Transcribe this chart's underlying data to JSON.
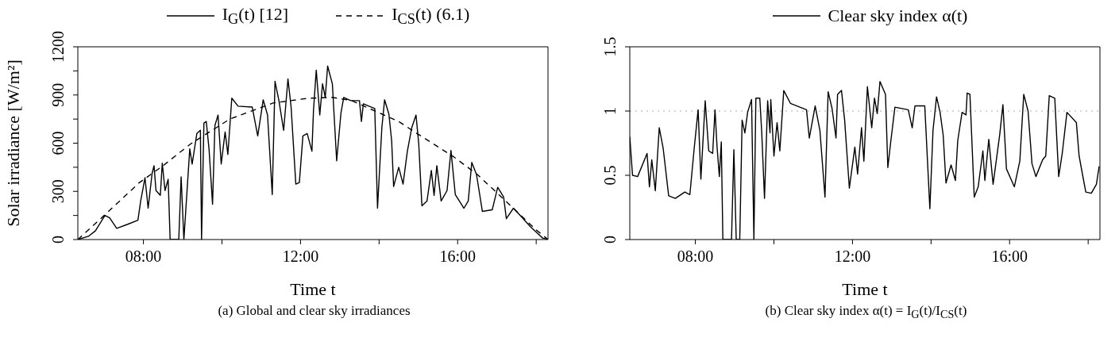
{
  "chart_data": [
    {
      "type": "line",
      "xlabel": "Time t",
      "ylabel": "Solar irradiance [W/m²]",
      "legend": "top",
      "annotations": [
        "(a) Global and clear sky irradiances"
      ],
      "xlim": [
        6.33,
        18.3
      ],
      "xticks": [
        {
          "value": 8,
          "label": "08:00"
        },
        {
          "value": 10,
          "label": null
        },
        {
          "value": 12,
          "label": "12:00"
        },
        {
          "value": 14,
          "label": null
        },
        {
          "value": 16,
          "label": "16:00"
        },
        {
          "value": 18,
          "label": null
        }
      ],
      "ylim": [
        0,
        1200
      ],
      "yticks": [
        0,
        {
          "value": 150,
          "label": null
        },
        300,
        {
          "value": 450,
          "label": null
        },
        600,
        {
          "value": 750,
          "label": null
        },
        900,
        {
          "value": 1050,
          "label": null
        },
        1200
      ],
      "series": [
        {
          "name": "I$_{G}$(t) [12]",
          "color": "#000000",
          "line_style": "solid",
          "x": [
            6.33,
            6.6,
            6.78,
            7.02,
            7.14,
            7.32,
            7.6,
            7.86,
            7.93,
            8.04,
            8.12,
            8.22,
            8.27,
            8.32,
            8.43,
            8.48,
            8.55,
            8.63,
            8.68,
            8.9,
            8.96,
            9.03,
            9.18,
            9.24,
            9.36,
            9.45,
            9.48,
            9.54,
            9.6,
            9.67,
            9.76,
            9.82,
            9.9,
            9.98,
            10.08,
            10.15,
            10.25,
            10.41,
            10.77,
            10.91,
            11.05,
            11.16,
            11.28,
            11.35,
            11.45,
            11.57,
            11.68,
            11.76,
            11.88,
            11.97,
            12.06,
            12.17,
            12.29,
            12.33,
            12.4,
            12.49,
            12.56,
            12.63,
            12.69,
            12.81,
            12.92,
            13.03,
            13.1,
            13.28,
            13.5,
            13.55,
            13.6,
            13.89,
            13.96,
            14.07,
            14.14,
            14.25,
            14.32,
            14.37,
            14.5,
            14.61,
            14.72,
            14.83,
            14.94,
            15.01,
            15.09,
            15.22,
            15.33,
            15.4,
            15.47,
            15.58,
            15.73,
            15.83,
            15.94,
            16.16,
            16.27,
            16.36,
            16.48,
            16.63,
            16.88,
            17.02,
            17.17,
            17.24,
            17.42,
            17.67,
            17.85,
            18.03,
            18.17,
            18.28
          ],
          "values": [
            0,
            20,
            55,
            150,
            135,
            70,
            95,
            120,
            240,
            385,
            195,
            410,
            460,
            305,
            275,
            475,
            305,
            375,
            0,
            0,
            390,
            0,
            565,
            470,
            660,
            680,
            0,
            725,
            735,
            565,
            220,
            710,
            775,
            470,
            670,
            530,
            880,
            830,
            825,
            645,
            870,
            775,
            280,
            985,
            865,
            680,
            1000,
            825,
            345,
            355,
            645,
            660,
            550,
            805,
            1055,
            775,
            970,
            885,
            1080,
            970,
            490,
            790,
            885,
            865,
            865,
            735,
            845,
            815,
            195,
            695,
            870,
            780,
            615,
            330,
            450,
            345,
            550,
            695,
            775,
            595,
            210,
            240,
            430,
            275,
            460,
            240,
            305,
            555,
            280,
            195,
            240,
            480,
            405,
            175,
            185,
            325,
            265,
            130,
            195,
            130,
            80,
            40,
            8,
            3
          ]
        },
        {
          "name": "I$_{CS}$(t) (6.1)",
          "color": "#000000",
          "line_style": "dashed",
          "x": [
            6.33,
            7,
            7.9,
            8.5,
            9.2,
            10.2,
            11.3,
            12.2,
            12.8,
            13.3,
            14.5,
            15,
            15.9,
            16.5,
            17.2,
            18,
            18.3
          ],
          "values": [
            0,
            150,
            355,
            460,
            595,
            750,
            850,
            880,
            885,
            865,
            735,
            655,
            515,
            405,
            245,
            60,
            0
          ]
        }
      ]
    },
    {
      "type": "line",
      "xlabel": "Time t",
      "legend": "top",
      "annotations": [
        "(b) Clear sky index α(t) = I$_{G}$(t)/I$_{CS}$(t)"
      ],
      "xlim": [
        6.33,
        18.3
      ],
      "xticks": [
        {
          "value": 8,
          "label": "08:00"
        },
        {
          "value": 10,
          "label": null
        },
        {
          "value": 12,
          "label": "12:00"
        },
        {
          "value": 14,
          "label": null
        },
        {
          "value": 16,
          "label": "16:00"
        },
        {
          "value": 18,
          "label": null
        }
      ],
      "ylim": [
        0,
        1.5
      ],
      "yticks": [
        0,
        0.5,
        1,
        1.5
      ],
      "ref_lines": [
        {
          "axis": "y",
          "value": 1,
          "color": "#aaaaaa",
          "line_style": "dotted"
        }
      ],
      "series": [
        {
          "name": "Clear sky index α(t)",
          "color": "#000000",
          "line_style": "solid",
          "x": [
            6.33,
            6.4,
            6.53,
            6.77,
            6.83,
            6.89,
            6.98,
            7.08,
            7.18,
            7.32,
            7.49,
            7.73,
            7.86,
            7.97,
            8.07,
            8.14,
            8.25,
            8.34,
            8.44,
            8.5,
            8.55,
            8.61,
            8.66,
            8.7,
            8.92,
            8.98,
            9.04,
            9.13,
            9.19,
            9.26,
            9.33,
            9.43,
            9.49,
            9.54,
            9.64,
            9.69,
            9.76,
            9.84,
            9.9,
            9.92,
            10,
            10.08,
            10.15,
            10.25,
            10.42,
            10.83,
            10.9,
            11.05,
            11.17,
            11.3,
            11.38,
            11.48,
            11.58,
            11.62,
            11.72,
            11.8,
            11.92,
            12.06,
            12.13,
            12.23,
            12.29,
            12.38,
            12.49,
            12.56,
            12.63,
            12.7,
            12.84,
            12.9,
            12.97,
            13.08,
            13.42,
            13.52,
            13.59,
            13.84,
            13.97,
            14.05,
            14.14,
            14.23,
            14.31,
            14.38,
            14.51,
            14.62,
            14.68,
            14.79,
            14.89,
            14.92,
            14.99,
            15.1,
            15.2,
            15.32,
            15.37,
            15.47,
            15.58,
            15.75,
            15.83,
            15.92,
            16.12,
            16.26,
            16.36,
            16.47,
            16.57,
            16.67,
            16.84,
            16.92,
            17.01,
            17.15,
            17.25,
            17.34,
            17.46,
            17.7,
            17.77,
            17.86,
            17.94,
            18.08,
            18.21,
            18.28
          ],
          "values": [
            0.8,
            0.5,
            0.49,
            0.67,
            0.41,
            0.62,
            0.38,
            0.87,
            0.71,
            0.34,
            0.32,
            0.37,
            0.35,
            0.71,
            1.01,
            0.47,
            1.08,
            0.69,
            0.67,
            1.01,
            0.73,
            0.49,
            0.76,
            0,
            0,
            0.7,
            0,
            0,
            0.93,
            0.83,
            0.99,
            1.09,
            0,
            1.1,
            1.1,
            0.83,
            0.32,
            1.08,
            0.83,
            1.09,
            0.65,
            0.91,
            0.69,
            1.16,
            1.06,
            1.01,
            0.79,
            1.04,
            0.85,
            0.33,
            1.15,
            1.02,
            0.79,
            1.13,
            1.16,
            0.93,
            0.4,
            0.72,
            0.51,
            0.87,
            0.61,
            1.19,
            0.87,
            1.1,
            0.98,
            1.23,
            1.13,
            0.56,
            0.75,
            1.03,
            1.01,
            0.87,
            1.04,
            1.04,
            0.24,
            0.85,
            1.11,
            0.99,
            0.81,
            0.44,
            0.58,
            0.46,
            0.77,
            0.99,
            0.97,
            1.14,
            1.13,
            0.33,
            0.41,
            0.69,
            0.46,
            0.78,
            0.43,
            0.82,
            1.05,
            0.55,
            0.41,
            0.61,
            1.13,
            1,
            0.59,
            0.49,
            0.62,
            0.65,
            1.12,
            1.1,
            0.49,
            0.67,
            0.99,
            0.91,
            0.65,
            0.5,
            0.37,
            0.36,
            0.43,
            0.57
          ]
        }
      ]
    }
  ]
}
